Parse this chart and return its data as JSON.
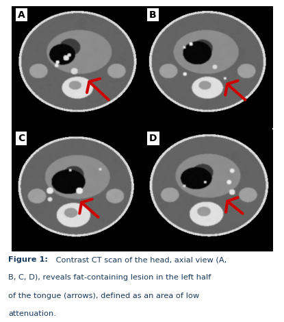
{
  "title_bold": "Figure 1:",
  "title_normal": " Contrast CT scan of the head, axial view (A, B, C, D), reveals fat-containing lesion in the left half of the tongue (arrows), defined as an area of low attenuation.",
  "panel_labels": [
    "A",
    "B",
    "C",
    "D"
  ],
  "background_color": "#ffffff",
  "image_bg": "#000000",
  "label_text_color": "#000000",
  "arrow_color": "#cc0000",
  "fig_width": 4.15,
  "fig_height": 4.7,
  "title_fontsize": 8.2,
  "label_fontsize": 10,
  "text_color": "#1a3a5c",
  "caption_lines": [
    [
      "bold",
      "Figure 1:"
    ],
    [
      "normal",
      " Contrast CT scan of the head, axial view (A,"
    ],
    [
      "normal",
      "B, C, D), reveals fat-containing lesion in the left half"
    ],
    [
      "normal",
      "of the tongue (arrows), defined as an area of low"
    ],
    [
      "normal",
      "attenuation."
    ]
  ],
  "arrows": [
    {
      "xtail": 0.73,
      "ytail": 0.78,
      "xhead": 0.55,
      "yhead": 0.6
    },
    {
      "xtail": 0.78,
      "ytail": 0.78,
      "xhead": 0.6,
      "yhead": 0.6
    },
    {
      "xtail": 0.65,
      "ytail": 0.75,
      "xhead": 0.5,
      "yhead": 0.58
    },
    {
      "xtail": 0.78,
      "ytail": 0.72,
      "xhead": 0.62,
      "yhead": 0.57
    }
  ]
}
